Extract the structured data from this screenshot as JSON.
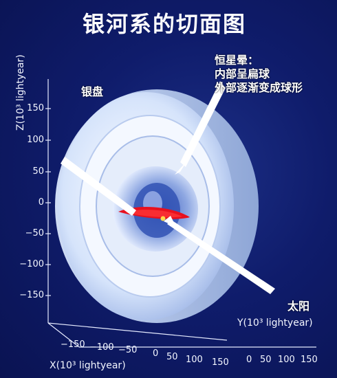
{
  "title": "银河系的切面图",
  "axes": {
    "z_label": "Z(10³ lightyear)",
    "y_label": "Y(10³ lightyear)",
    "x_label": "X(10³ lightyear)",
    "z_ticks": [
      "150",
      "100",
      "50",
      "0",
      "−50",
      "−100",
      "−150"
    ],
    "x_ticks": [
      "−150",
      "−100",
      "−50",
      "0",
      "50",
      "100",
      "150"
    ],
    "y_ticks": [
      "0",
      "50",
      "100",
      "150"
    ]
  },
  "labels": {
    "disk": "银盘",
    "halo_line1": "恒星晕：",
    "halo_line2": "内部呈扁球",
    "halo_line3": "外部逐渐变成球形",
    "sun": "太阳"
  },
  "colors": {
    "background": "#0f1c6b",
    "shell": "#dce8ff",
    "disk": "#e8101e",
    "sun": "#ffd84a"
  }
}
